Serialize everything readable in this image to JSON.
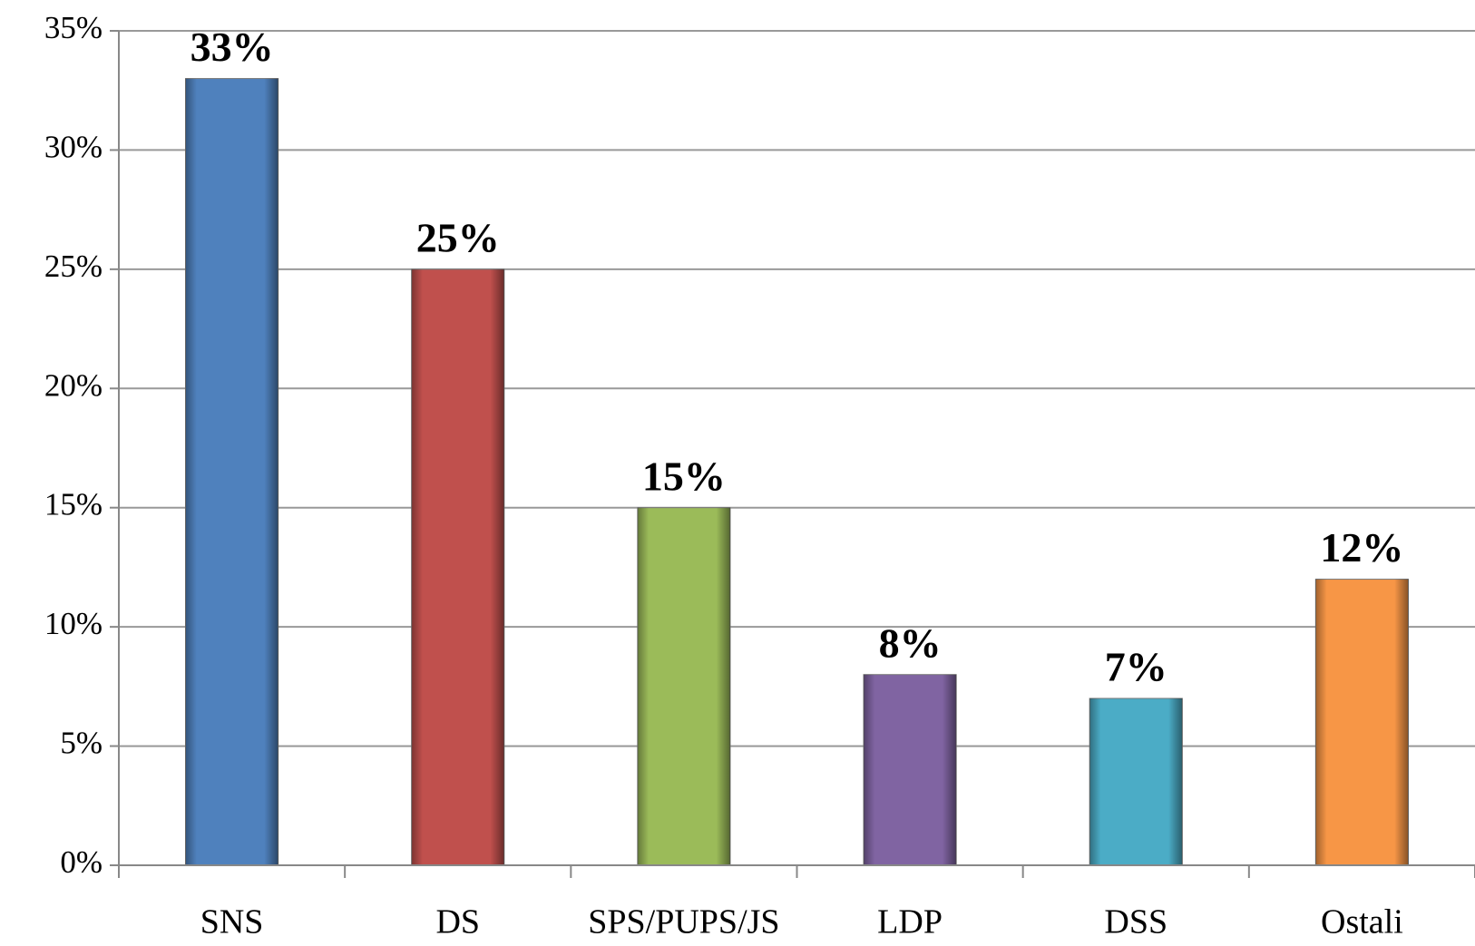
{
  "chart_data": {
    "type": "bar",
    "categories": [
      "SNS",
      "DS",
      "SPS/PUPS/JS",
      "LDP",
      "DSS",
      "Ostali"
    ],
    "values": [
      33,
      25,
      15,
      8,
      7,
      12
    ],
    "value_labels": [
      "33%",
      "25%",
      "15%",
      "8%",
      "7%",
      "12%"
    ],
    "colors": [
      "#4f81bd",
      "#c0504d",
      "#9bbb59",
      "#8064a2",
      "#4bacc6",
      "#f79646"
    ],
    "ylim": [
      0,
      35
    ],
    "yticks": [
      {
        "value": 0,
        "label": "0%"
      },
      {
        "value": 5,
        "label": "5%"
      },
      {
        "value": 10,
        "label": "10%"
      },
      {
        "value": 15,
        "label": "15%"
      },
      {
        "value": 20,
        "label": "20%"
      },
      {
        "value": 25,
        "label": "25%"
      },
      {
        "value": 30,
        "label": "30%"
      },
      {
        "value": 35,
        "label": "35%"
      }
    ],
    "grid": true
  }
}
